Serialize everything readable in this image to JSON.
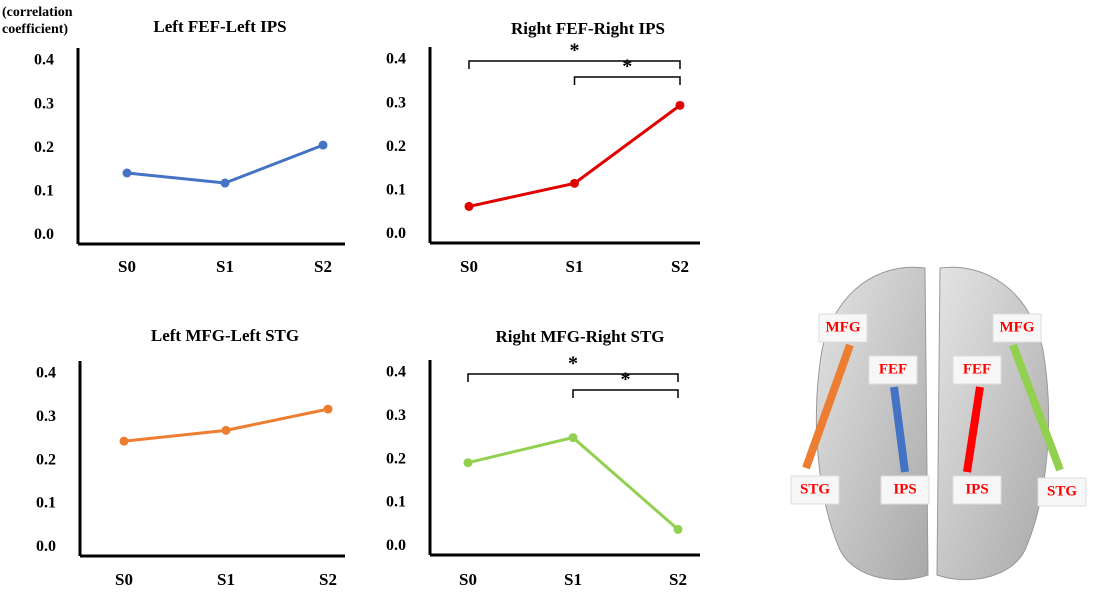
{
  "chart_data": [
    {
      "type": "line",
      "title": "Left FEF-Left IPS",
      "ylabel": "(correlation coefficient)",
      "categories": [
        "S0",
        "S1",
        "S2"
      ],
      "values": [
        0.143,
        0.12,
        0.207
      ],
      "color": "#4472c4",
      "ylim": [
        -0.02,
        0.43
      ],
      "yticks": [
        {
          "value": 0,
          "label": "0.0"
        },
        0.1,
        0.2,
        0.3,
        0.4
      ],
      "grid": false
    },
    {
      "type": "line",
      "title": "Right FEF-Right IPS",
      "categories": [
        "S0",
        "S1",
        "S2"
      ],
      "values": [
        0.064,
        0.117,
        0.296
      ],
      "color": "#e00000",
      "ylim": [
        -0.02,
        0.43
      ],
      "yticks": [
        {
          "value": 0,
          "label": "0.0"
        },
        0.1,
        0.2,
        0.3,
        0.4
      ],
      "grid": false,
      "significance": [
        {
          "label": "*",
          "between": [
            "S0",
            "S2"
          ]
        },
        {
          "label": "*",
          "between": [
            "S1",
            "S2"
          ]
        }
      ]
    },
    {
      "type": "line",
      "title": "Left MFG-Left STG",
      "categories": [
        "S0",
        "S1",
        "S2"
      ],
      "values": [
        0.245,
        0.27,
        0.319
      ],
      "color": "#ed7d31",
      "ylim": [
        -0.02,
        0.43
      ],
      "yticks": [
        {
          "value": 0,
          "label": "0.0"
        },
        0.1,
        0.2,
        0.3,
        0.4
      ],
      "grid": false
    },
    {
      "type": "line",
      "title": "Right MFG-Right STG",
      "categories": [
        "S0",
        "S1",
        "S2"
      ],
      "values": [
        0.193,
        0.251,
        0.039
      ],
      "color": "#92d050",
      "ylim": [
        -0.02,
        0.43
      ],
      "yticks": [
        {
          "value": 0,
          "label": "0.0"
        },
        0.1,
        0.2,
        0.3,
        0.4
      ],
      "grid": false,
      "significance": [
        {
          "label": "*",
          "between": [
            "S0",
            "S2"
          ]
        },
        {
          "label": "*",
          "between": [
            "S1",
            "S2"
          ]
        }
      ]
    }
  ],
  "diagram": {
    "labels": [
      "MFG",
      "FEF",
      "STG",
      "IPS",
      "FEF",
      "IPS",
      "MFG",
      "STG"
    ]
  }
}
